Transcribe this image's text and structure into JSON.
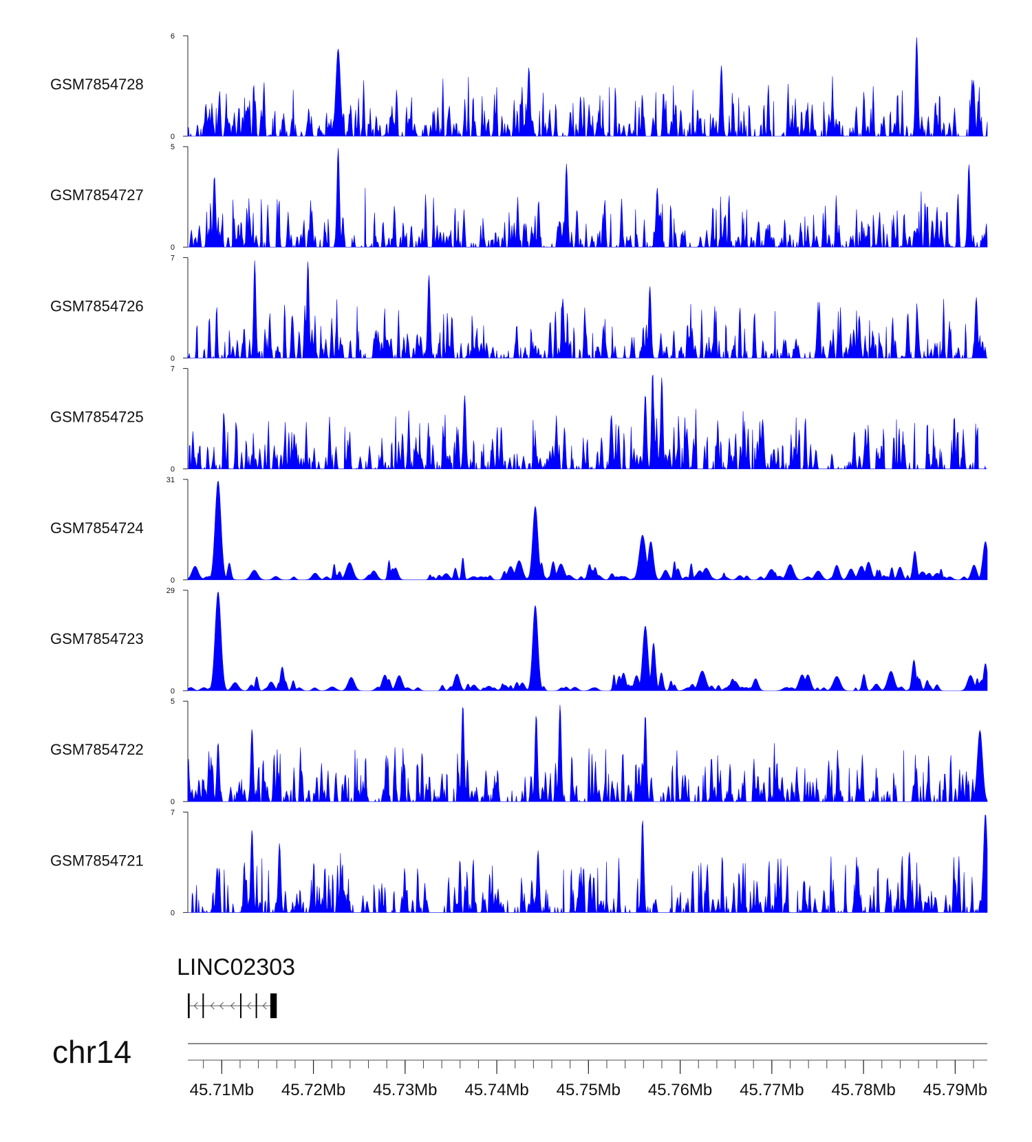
{
  "chart_data": {
    "type": "area",
    "color": "#0000ff",
    "x_range_mb": [
      45.7063,
      45.7935
    ],
    "tracks": [
      {
        "name": "GSM7854728",
        "ymin": "0",
        "ymax": "6",
        "max": 6,
        "style": "spiky",
        "seed": 11,
        "peaks": [
          [
            45.7227,
            5.3,
            0.00035
          ],
          [
            45.7435,
            4.2,
            0.0002
          ],
          [
            45.7645,
            4.3,
            0.0002
          ],
          [
            45.7858,
            6.0,
            0.0002
          ],
          [
            45.792,
            3.4,
            0.0002
          ]
        ]
      },
      {
        "name": "GSM7854727",
        "ymin": "0",
        "ymax": "5",
        "max": 5,
        "style": "spiky",
        "seed": 23,
        "peaks": [
          [
            45.7227,
            5.0,
            0.0002
          ],
          [
            45.7476,
            4.2,
            0.0002
          ],
          [
            45.7092,
            3.6,
            0.0002
          ],
          [
            45.7915,
            4.2,
            0.0002
          ],
          [
            45.7575,
            3.0,
            0.0002
          ]
        ]
      },
      {
        "name": "GSM7854726",
        "ymin": "0",
        "ymax": "7",
        "max": 7,
        "style": "spiky",
        "seed": 37,
        "peaks": [
          [
            45.7136,
            6.9,
            0.00018
          ],
          [
            45.7194,
            6.9,
            0.00018
          ],
          [
            45.7326,
            5.9,
            0.0002
          ],
          [
            45.7567,
            5.1,
            0.0002
          ],
          [
            45.7472,
            4.2,
            0.0002
          ],
          [
            45.7923,
            4.3,
            0.0002
          ]
        ]
      },
      {
        "name": "GSM7854725",
        "ymin": "0",
        "ymax": "7",
        "max": 7,
        "style": "spiky",
        "seed": 49,
        "peaks": [
          [
            45.757,
            6.9,
            0.00018
          ],
          [
            45.758,
            6.5,
            0.00018
          ],
          [
            45.7562,
            5.3,
            0.0002
          ],
          [
            45.7365,
            5.2,
            0.0002
          ],
          [
            45.7525,
            3.8,
            0.0002
          ],
          [
            45.769,
            3.5,
            0.0002
          ]
        ]
      },
      {
        "name": "GSM7854724",
        "ymin": "0",
        "ymax": "31",
        "max": 31,
        "style": "smooth",
        "seed": 61,
        "peaks": [
          [
            45.7096,
            31,
            0.00045
          ],
          [
            45.7442,
            23,
            0.0004
          ],
          [
            45.7559,
            14,
            0.0005
          ],
          [
            45.7568,
            12,
            0.0004
          ],
          [
            45.7856,
            9,
            0.0003
          ],
          [
            45.7933,
            12,
            0.0004
          ],
          [
            45.7363,
            7,
            0.0002
          ],
          [
            45.747,
            5,
            0.0005
          ]
        ]
      },
      {
        "name": "GSM7854723",
        "ymin": "0",
        "ymax": "29",
        "max": 29,
        "style": "smooth",
        "seed": 73,
        "peaks": [
          [
            45.7096,
            29,
            0.00045
          ],
          [
            45.7442,
            25,
            0.0004
          ],
          [
            45.7562,
            19,
            0.0004
          ],
          [
            45.7571,
            14,
            0.0003
          ],
          [
            45.7855,
            9,
            0.0003
          ],
          [
            45.7933,
            8,
            0.0003
          ],
          [
            45.7166,
            7,
            0.0003
          ]
        ]
      },
      {
        "name": "GSM7854722",
        "ymin": "0",
        "ymax": "5",
        "max": 5,
        "style": "spiky",
        "seed": 85,
        "peaks": [
          [
            45.7363,
            4.9,
            0.0002
          ],
          [
            45.7469,
            4.9,
            0.0002
          ],
          [
            45.7443,
            4.4,
            0.0002
          ],
          [
            45.7562,
            4.4,
            0.0002
          ],
          [
            45.7927,
            3.6,
            0.0004
          ],
          [
            45.7133,
            3.7,
            0.0002
          ],
          [
            45.7096,
            3.0,
            0.0002
          ]
        ]
      },
      {
        "name": "GSM7854721",
        "ymin": "0",
        "ymax": "7",
        "max": 7,
        "style": "spiky",
        "seed": 97,
        "peaks": [
          [
            45.7559,
            6.6,
            0.0002
          ],
          [
            45.7933,
            7.0,
            0.0003
          ],
          [
            45.7133,
            5.9,
            0.0002
          ],
          [
            45.7163,
            4.9,
            0.0002
          ],
          [
            45.7095,
            3.2,
            0.0002
          ],
          [
            45.785,
            4.3,
            0.0002
          ],
          [
            45.7445,
            4.4,
            0.0002
          ]
        ]
      }
    ],
    "gene": {
      "name": "LINC02303",
      "strand": "-",
      "start_mb": 45.7063,
      "end_mb": 45.716,
      "exons": [
        [
          45.7063,
          45.7065
        ],
        [
          45.7079,
          45.708
        ],
        [
          45.712,
          45.7121
        ],
        [
          45.7137,
          45.7138
        ],
        [
          45.7153,
          45.716
        ]
      ]
    },
    "axis": {
      "chromosome": "chr14",
      "ticks": [
        "45.71Mb",
        "45.72Mb",
        "45.73Mb",
        "45.74Mb",
        "45.75Mb",
        "45.76Mb",
        "45.77Mb",
        "45.78Mb",
        "45.79Mb"
      ],
      "tick_values_mb": [
        45.71,
        45.72,
        45.73,
        45.74,
        45.75,
        45.76,
        45.77,
        45.78,
        45.79
      ],
      "minor_step_mb": 0.002
    }
  }
}
